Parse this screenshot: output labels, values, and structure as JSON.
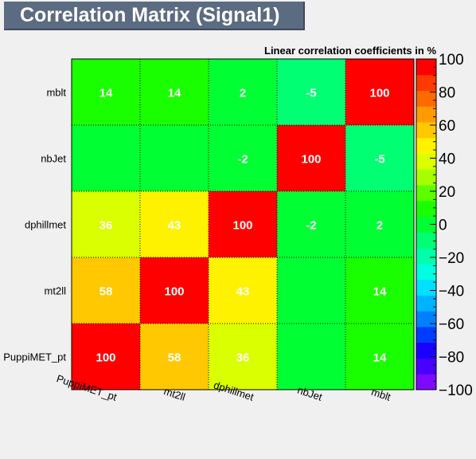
{
  "title": "Correlation Matrix (Signal1)",
  "chart_data": {
    "type": "heatmap",
    "title": "Correlation Matrix (Signal1)",
    "subtitle": "Linear correlation coefficients in %",
    "x_categories": [
      "PuppiMET_pt",
      "mt2ll",
      "dphillmet",
      "nbJet",
      "mblt"
    ],
    "y_categories": [
      "PuppiMET_pt",
      "mt2ll",
      "dphillmet",
      "nbJet",
      "mblt"
    ],
    "values": [
      [
        100,
        58,
        36,
        null,
        14
      ],
      [
        58,
        100,
        43,
        null,
        14
      ],
      [
        36,
        43,
        100,
        -2,
        2
      ],
      [
        null,
        null,
        -2,
        100,
        -5
      ],
      [
        14,
        14,
        2,
        -5,
        100
      ]
    ],
    "zlim": [
      -100,
      100
    ],
    "z_ticks": [
      -100,
      -80,
      -60,
      -40,
      -20,
      0,
      20,
      40,
      60,
      80,
      100
    ],
    "palette": [
      "#7d0aff",
      "#4800ff",
      "#1a00ff",
      "#003cff",
      "#0080ff",
      "#00b3ff",
      "#00e0ff",
      "#00ffe0",
      "#00ffa8",
      "#00ff73",
      "#00ff33",
      "#1aff00",
      "#5cff00",
      "#a6ff00",
      "#d9ff00",
      "#fff200",
      "#ffc800",
      "#ff9b00",
      "#ff6a00",
      "#ff3a00",
      "#ff0000"
    ],
    "grid": "dotted"
  }
}
